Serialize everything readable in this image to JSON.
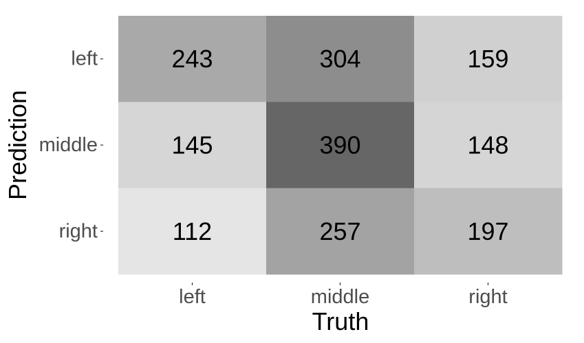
{
  "chart_data": {
    "type": "heatmap",
    "title": "",
    "xlabel": "Truth",
    "ylabel": "Prediction",
    "x_categories": [
      "left",
      "middle",
      "right"
    ],
    "y_categories": [
      "left",
      "middle",
      "right"
    ],
    "values": [
      [
        243,
        304,
        159
      ],
      [
        145,
        390,
        148
      ],
      [
        112,
        257,
        197
      ]
    ],
    "color_scale": {
      "low_color": "#e5e5e5",
      "high_color": "#666666"
    },
    "legend": "none",
    "grid": false
  }
}
